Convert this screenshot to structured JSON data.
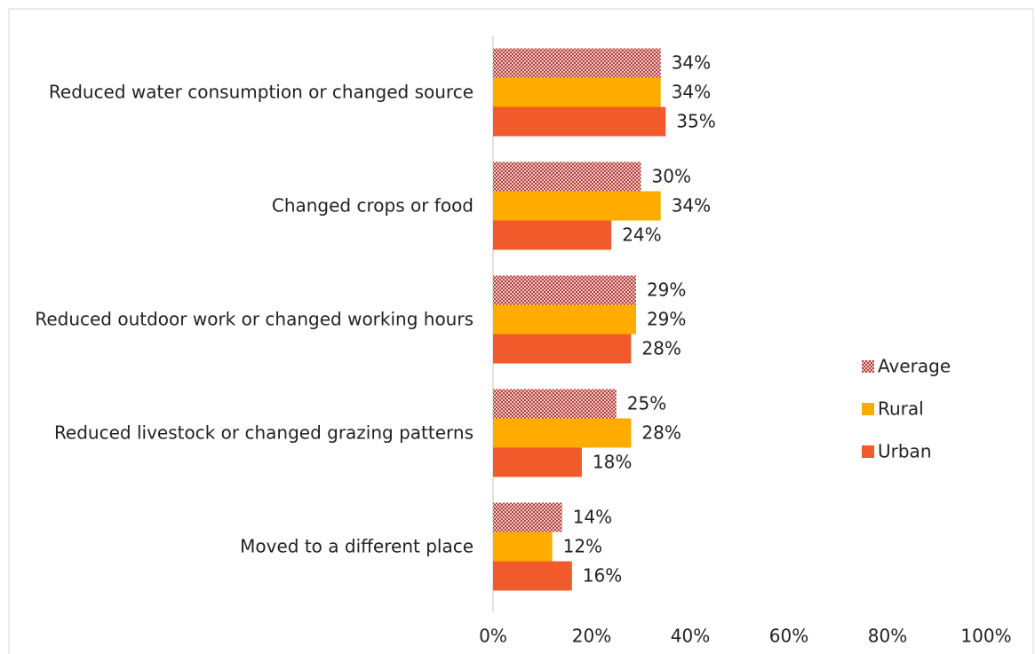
{
  "chart_data": {
    "type": "hbar",
    "categories": [
      "Reduced water consumption or changed source",
      "Changed crops or food",
      "Reduced outdoor work or changed working hours",
      "Reduced livestock or changed grazing patterns",
      "Moved to a different place"
    ],
    "series": [
      {
        "name": "Average",
        "color": "#c0504d",
        "pattern": "checker",
        "values": [
          34,
          30,
          29,
          25,
          14
        ],
        "value_labels": [
          "34%",
          "30%",
          "29%",
          "25%",
          "14%"
        ]
      },
      {
        "name": "Rural",
        "color": "#ffab00",
        "values": [
          34,
          34,
          29,
          28,
          12
        ],
        "value_labels": [
          "34%",
          "34%",
          "29%",
          "28%",
          "12%"
        ]
      },
      {
        "name": "Urban",
        "color": "#f15a2b",
        "values": [
          35,
          24,
          28,
          18,
          16
        ],
        "value_labels": [
          "35%",
          "24%",
          "28%",
          "18%",
          "16%"
        ]
      }
    ],
    "xlim": [
      0,
      100
    ],
    "xticks": [
      {
        "value": 0,
        "label": "0%"
      },
      {
        "value": 20,
        "label": "20%"
      },
      {
        "value": 40,
        "label": "40%"
      },
      {
        "value": 60,
        "label": "60%"
      },
      {
        "value": 80,
        "label": "80%"
      },
      {
        "value": 100,
        "label": "100%"
      }
    ],
    "grid": false,
    "legend": "right"
  }
}
